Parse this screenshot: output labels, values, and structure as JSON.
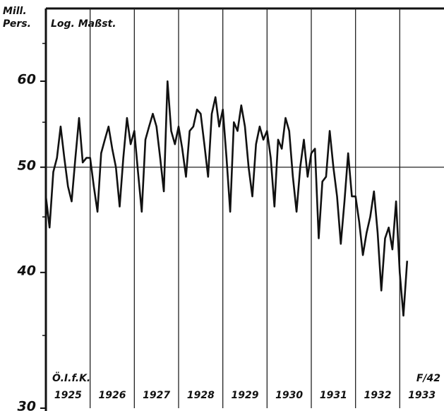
{
  "chart_data": {
    "type": "line",
    "y_unit_label": "Mill. Pers.",
    "scale_note": "Log. Maßst.",
    "source": "Ö.I.f.K.",
    "figure_id": "F/42",
    "log_y": true,
    "color": "#111111",
    "ylim": [
      30,
      70
    ],
    "yticks": [
      30,
      40,
      50,
      60
    ],
    "yminor": [
      35,
      45,
      55,
      65
    ],
    "hline": 50,
    "xlim": [
      1925,
      1934
    ],
    "xgrid": [
      1926,
      1927,
      1928,
      1929,
      1930,
      1931,
      1932,
      1933
    ],
    "xticks": [
      {
        "value": 1925.5,
        "label": "1925"
      },
      {
        "value": 1926.5,
        "label": "1926"
      },
      {
        "value": 1927.5,
        "label": "1927"
      },
      {
        "value": 1928.5,
        "label": "1928"
      },
      {
        "value": 1929.5,
        "label": "1929"
      },
      {
        "value": 1930.5,
        "label": "1930"
      },
      {
        "value": 1931.5,
        "label": "1931"
      },
      {
        "value": 1932.5,
        "label": "1932"
      },
      {
        "value": 1933.5,
        "label": "1933"
      }
    ],
    "x": [
      1925,
      1925.083,
      1925.167,
      1925.25,
      1925.333,
      1925.417,
      1925.5,
      1925.583,
      1925.667,
      1925.75,
      1925.833,
      1925.917,
      1926,
      1926.083,
      1926.167,
      1926.25,
      1926.333,
      1926.417,
      1926.5,
      1926.583,
      1926.667,
      1926.75,
      1926.833,
      1926.917,
      1927,
      1927.083,
      1927.167,
      1927.25,
      1927.333,
      1927.417,
      1927.5,
      1927.583,
      1927.667,
      1927.75,
      1927.833,
      1927.917,
      1928,
      1928.083,
      1928.167,
      1928.25,
      1928.333,
      1928.417,
      1928.5,
      1928.583,
      1928.667,
      1928.75,
      1928.833,
      1928.917,
      1929,
      1929.083,
      1929.167,
      1929.25,
      1929.333,
      1929.417,
      1929.5,
      1929.583,
      1929.667,
      1929.75,
      1929.833,
      1929.917,
      1930,
      1930.083,
      1930.167,
      1930.25,
      1930.333,
      1930.417,
      1930.5,
      1930.583,
      1930.667,
      1930.75,
      1930.833,
      1930.917,
      1931,
      1931.083,
      1931.167,
      1931.25,
      1931.333,
      1931.417,
      1931.5,
      1931.583,
      1931.667,
      1931.75,
      1931.833,
      1931.917,
      1932,
      1932.083,
      1932.167,
      1932.25,
      1932.333,
      1932.417,
      1932.5,
      1932.583,
      1932.667,
      1932.75,
      1932.833,
      1932.917,
      1933,
      1933.083,
      1933.167
    ],
    "values": [
      47,
      44,
      49.5,
      51,
      54.5,
      51,
      48,
      46.5,
      51,
      55.5,
      50.5,
      51,
      51,
      48,
      45.5,
      51.5,
      53,
      54.5,
      52,
      50,
      46,
      51,
      55.5,
      52.5,
      54,
      49.5,
      45.5,
      53,
      54.5,
      56,
      54.5,
      51,
      47.5,
      60,
      54,
      52.5,
      54.5,
      52,
      49,
      54,
      54.5,
      56.5,
      56,
      52.5,
      49,
      56,
      58,
      54.5,
      56.5,
      51,
      45.5,
      55,
      54,
      57,
      54.5,
      50,
      47,
      52.5,
      54.5,
      53,
      54,
      51,
      46,
      53,
      52,
      55.5,
      54,
      49,
      45.5,
      50,
      53,
      49,
      51.5,
      52,
      43,
      48.5,
      49,
      54,
      50,
      47,
      42.5,
      46.5,
      51.5,
      47,
      47,
      44.5,
      41.5,
      43.5,
      45,
      47.5,
      43.5,
      38.5,
      43,
      44,
      42,
      46.5,
      40,
      36.5,
      41
    ]
  }
}
